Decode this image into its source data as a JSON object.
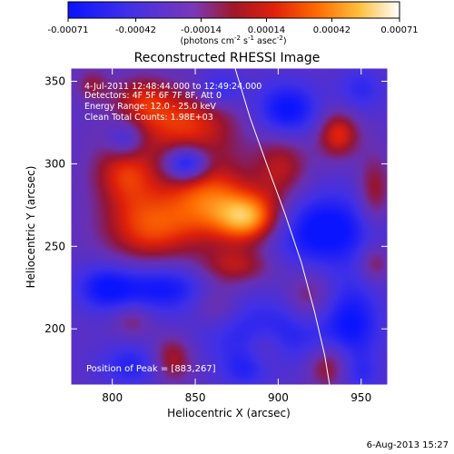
{
  "colorbar": {
    "ticks": [
      "-0.00071",
      "-0.00042",
      "-0.00014",
      "0.00014",
      "0.00042",
      "0.00071"
    ],
    "label_main": "(photons cm",
    "label_sup1": "-2",
    "label_mid": " s",
    "label_sup2": "-1",
    "label_tail": " asec",
    "label_sup3": "-2",
    "label_close": ")"
  },
  "plot": {
    "title": "Reconstructed RHESSI Image",
    "info_lines": [
      "4-Jul-2011 12:48:44.000 to 12:49:24.000",
      "Detectors: 4F 5F 6F 7F 8F, Att 0",
      "Energy Range: 12.0 - 25.0 keV",
      "Clean    Total Counts: 1.98E+03"
    ],
    "peak_text": "Position of Peak = [883,267]",
    "footer_date": "6-Aug-2013 15:27"
  },
  "chart_data": {
    "type": "heatmap",
    "title": "Reconstructed RHESSI Image",
    "xlabel": "Heliocentric X (arcsec)",
    "ylabel": "Heliocentric Y (arcsec)",
    "xlim": [
      775,
      966
    ],
    "ylim": [
      166,
      358
    ],
    "x_ticks": [
      800,
      850,
      900,
      950
    ],
    "y_ticks": [
      200,
      250,
      300,
      350
    ],
    "x_tick_labels": [
      "800",
      "850",
      "900",
      "950"
    ],
    "y_tick_labels": [
      "200",
      "250",
      "300",
      "350"
    ],
    "colorbar_range": [
      -0.00071,
      0.00071
    ],
    "peak_position": [
      883,
      267
    ],
    "blobs": [
      {
        "x": 883,
        "y": 267,
        "sx": 14,
        "sy": 11,
        "amp": 0.00071
      },
      {
        "x": 858,
        "y": 280,
        "sx": 18,
        "sy": 18,
        "amp": 0.00055
      },
      {
        "x": 822,
        "y": 262,
        "sx": 20,
        "sy": 16,
        "amp": 0.00052
      },
      {
        "x": 808,
        "y": 295,
        "sx": 14,
        "sy": 14,
        "amp": 0.00045
      },
      {
        "x": 842,
        "y": 325,
        "sx": 24,
        "sy": 14,
        "amp": 0.00048
      },
      {
        "x": 818,
        "y": 340,
        "sx": 12,
        "sy": 10,
        "amp": 0.0003
      },
      {
        "x": 902,
        "y": 298,
        "sx": 12,
        "sy": 16,
        "amp": 0.00036
      },
      {
        "x": 936,
        "y": 318,
        "sx": 9,
        "sy": 10,
        "amp": 0.00048
      },
      {
        "x": 958,
        "y": 282,
        "sx": 7,
        "sy": 16,
        "amp": 0.00035
      },
      {
        "x": 958,
        "y": 240,
        "sx": 7,
        "sy": 8,
        "amp": 0.0003
      },
      {
        "x": 875,
        "y": 238,
        "sx": 16,
        "sy": 8,
        "amp": 0.00035
      },
      {
        "x": 918,
        "y": 218,
        "sx": 10,
        "sy": 12,
        "amp": 0.00028
      },
      {
        "x": 862,
        "y": 215,
        "sx": 11,
        "sy": 11,
        "amp": 0.00027
      },
      {
        "x": 836,
        "y": 182,
        "sx": 9,
        "sy": 10,
        "amp": 0.0004
      },
      {
        "x": 930,
        "y": 178,
        "sx": 9,
        "sy": 10,
        "amp": 0.00037
      },
      {
        "x": 892,
        "y": 190,
        "sx": 9,
        "sy": 10,
        "amp": 0.00026
      },
      {
        "x": 788,
        "y": 348,
        "sx": 7,
        "sy": 7,
        "amp": 0.00025
      },
      {
        "x": 812,
        "y": 205,
        "sx": 8,
        "sy": 7,
        "amp": 0.00022
      },
      {
        "x": 845,
        "y": 300,
        "sx": 9,
        "sy": 7,
        "amp": -0.0006
      },
      {
        "x": 808,
        "y": 315,
        "sx": 8,
        "sy": 8,
        "amp": -0.00035
      },
      {
        "x": 905,
        "y": 332,
        "sx": 14,
        "sy": 12,
        "amp": -0.00048
      },
      {
        "x": 927,
        "y": 260,
        "sx": 24,
        "sy": 16,
        "amp": -0.0005
      },
      {
        "x": 895,
        "y": 198,
        "sx": 30,
        "sy": 14,
        "amp": -0.00038
      },
      {
        "x": 830,
        "y": 225,
        "sx": 22,
        "sy": 10,
        "amp": -0.00042
      },
      {
        "x": 795,
        "y": 225,
        "sx": 12,
        "sy": 10,
        "amp": -0.00035
      },
      {
        "x": 945,
        "y": 205,
        "sx": 12,
        "sy": 18,
        "amp": -0.00035
      },
      {
        "x": 812,
        "y": 178,
        "sx": 14,
        "sy": 9,
        "amp": -0.0003
      },
      {
        "x": 950,
        "y": 345,
        "sx": 10,
        "sy": 10,
        "amp": -0.00025
      },
      {
        "x": 865,
        "y": 345,
        "sx": 10,
        "sy": 8,
        "amp": -0.0003
      },
      {
        "x": 880,
        "y": 175,
        "sx": 10,
        "sy": 8,
        "amp": -0.00025
      },
      {
        "x": 950,
        "y": 172,
        "sx": 8,
        "sy": 8,
        "amp": -0.0002
      }
    ],
    "limb_curve": [
      [
        874,
        358
      ],
      [
        883,
        328
      ],
      [
        893,
        300
      ],
      [
        904,
        270
      ],
      [
        914,
        240
      ],
      [
        922,
        210
      ],
      [
        928,
        184
      ],
      [
        931,
        166
      ]
    ]
  }
}
